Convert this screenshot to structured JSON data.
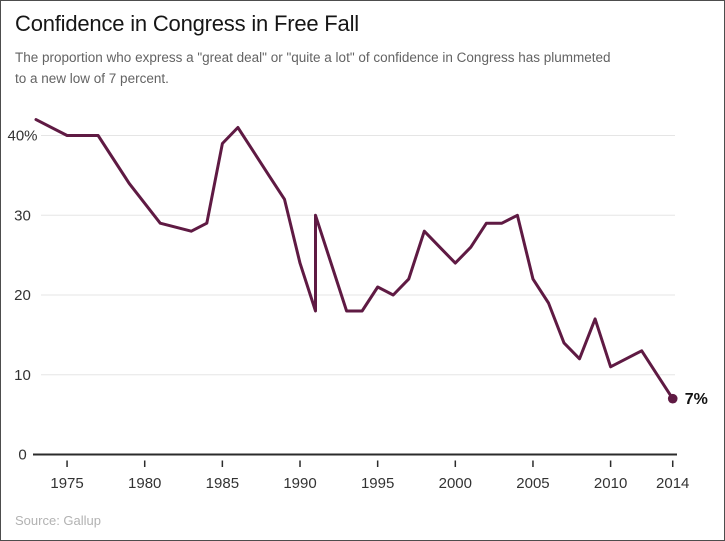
{
  "header": {
    "title": "Confidence in Congress in Free Fall",
    "subtitle_lines": [
      "The proportion who express a \"great deal\" or \"quite a lot\" of confidence in Congress has plummeted",
      "to a new low of 7 percent."
    ]
  },
  "footer": {
    "source": "Source: Gallup"
  },
  "chart_data": {
    "type": "line",
    "title": "Confidence in Congress in Free Fall",
    "series_name": "Percent with a great deal or quite a lot of confidence in Congress",
    "unit": "%",
    "points": [
      [
        1973,
        42
      ],
      [
        1975,
        40
      ],
      [
        1977,
        40
      ],
      [
        1979,
        34
      ],
      [
        1981,
        29
      ],
      [
        1983,
        28
      ],
      [
        1984,
        29
      ],
      [
        1985,
        39
      ],
      [
        1986,
        41
      ],
      [
        1988,
        35
      ],
      [
        1989,
        32
      ],
      [
        1990,
        24
      ],
      [
        1991,
        18
      ],
      [
        1991,
        30
      ],
      [
        1993,
        18
      ],
      [
        1994,
        18
      ],
      [
        1995,
        21
      ],
      [
        1996,
        20
      ],
      [
        1997,
        22
      ],
      [
        1998,
        28
      ],
      [
        1999,
        26
      ],
      [
        2000,
        24
      ],
      [
        2001,
        26
      ],
      [
        2002,
        29
      ],
      [
        2003,
        29
      ],
      [
        2004,
        30
      ],
      [
        2005,
        22
      ],
      [
        2006,
        19
      ],
      [
        2007,
        14
      ],
      [
        2008,
        12
      ],
      [
        2009,
        17
      ],
      [
        2010,
        11
      ],
      [
        2011,
        12
      ],
      [
        2012,
        13
      ],
      [
        2013,
        10
      ],
      [
        2014,
        7
      ]
    ],
    "x_ticks": [
      1975,
      1980,
      1985,
      1990,
      1995,
      2000,
      2005,
      2010,
      2014
    ],
    "y_ticks": [
      {
        "value": 40,
        "label": "40%"
      },
      {
        "value": 30,
        "label": "30"
      },
      {
        "value": 20,
        "label": "20"
      },
      {
        "value": 10,
        "label": "10"
      },
      {
        "value": 0,
        "label": "0"
      }
    ],
    "xlim": [
      1973,
      2014
    ],
    "ylim": [
      0,
      42
    ],
    "grid": "horizontal",
    "legend": "none",
    "end_label": "7%",
    "colors": {
      "line": "#5f1a43",
      "grid": "#e5e5e5",
      "axis": "#2b2b2b",
      "tick_label": "#333333",
      "end_label_text": "#121212"
    }
  }
}
